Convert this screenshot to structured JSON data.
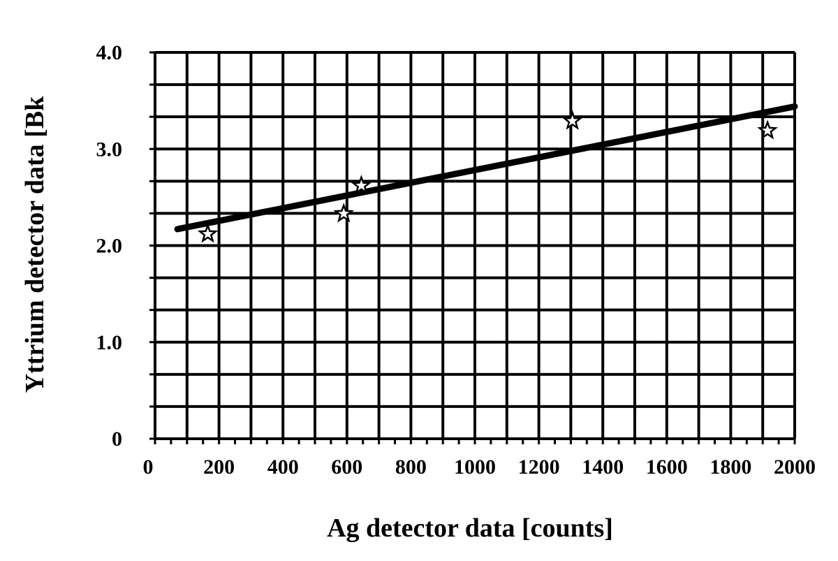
{
  "chart_data": {
    "type": "scatter",
    "title": "",
    "xlabel": "Ag detector data [counts]",
    "ylabel": "Yttrium detector data [Bk",
    "xlim": [
      0,
      2000
    ],
    "ylim": [
      0,
      4.0
    ],
    "x_ticks": [
      0,
      200,
      400,
      600,
      800,
      1000,
      1200,
      1400,
      1600,
      1800,
      2000
    ],
    "x_tick_labels": [
      "0",
      "200",
      "400",
      "600",
      "800",
      "1000",
      "1200",
      "1400",
      "1600",
      "1800",
      "2000"
    ],
    "y_ticks": [
      0,
      1.0,
      2.0,
      3.0,
      4.0
    ],
    "y_tick_labels": [
      "0",
      "1.0",
      "2.0",
      "3.0",
      "4.0"
    ],
    "grid": true,
    "x_grid_step": 100,
    "y_grid_step": 0.333,
    "points": [
      {
        "x": 165,
        "y": 2.12
      },
      {
        "x": 590,
        "y": 2.33
      },
      {
        "x": 645,
        "y": 2.62
      },
      {
        "x": 1305,
        "y": 3.29
      },
      {
        "x": 1915,
        "y": 3.19
      }
    ],
    "marker": "star",
    "fit_line": {
      "x": [
        70,
        2000
      ],
      "y": [
        2.17,
        3.44
      ]
    },
    "line_color": "#000000",
    "grid_color": "#000000"
  }
}
